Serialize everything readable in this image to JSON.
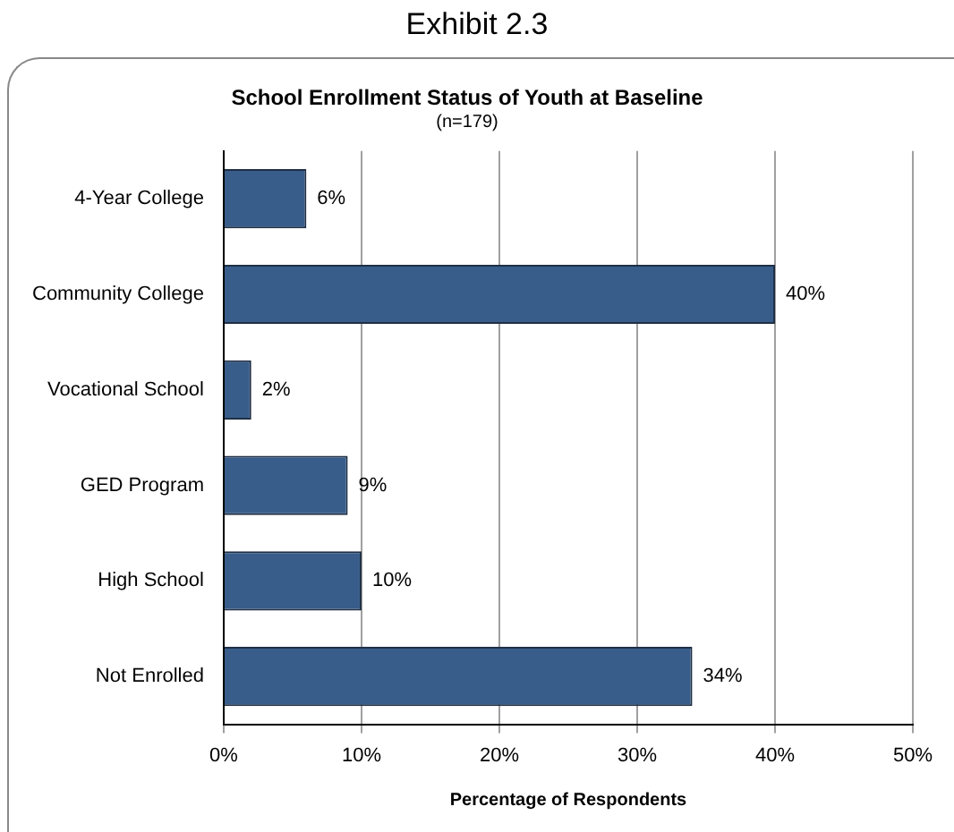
{
  "chart_data": {
    "type": "bar",
    "orientation": "horizontal",
    "title": "School Enrollment Status of Youth at Baseline",
    "subtitle": "(n=179)",
    "xlabel": "Percentage of Respondents",
    "annotations": [
      "Exhibit 2.3"
    ],
    "categories": [
      "4-Year College",
      "Community College",
      "Vocational School",
      "GED Program",
      "High School",
      "Not Enrolled"
    ],
    "values": [
      6,
      40,
      2,
      9,
      10,
      34
    ],
    "color": "#385d8a",
    "value_labels": [
      "6%",
      "40%",
      "2%",
      "9%",
      "10%",
      "34%"
    ],
    "xlim": [
      0,
      50
    ],
    "xticks": [
      {
        "value": 0,
        "label": "0%"
      },
      {
        "value": 10,
        "label": "10%"
      },
      {
        "value": 20,
        "label": "20%"
      },
      {
        "value": 30,
        "label": "30%"
      },
      {
        "value": 40,
        "label": "40%"
      },
      {
        "value": 50,
        "label": "50%"
      }
    ],
    "grid": "x",
    "legend": false
  }
}
